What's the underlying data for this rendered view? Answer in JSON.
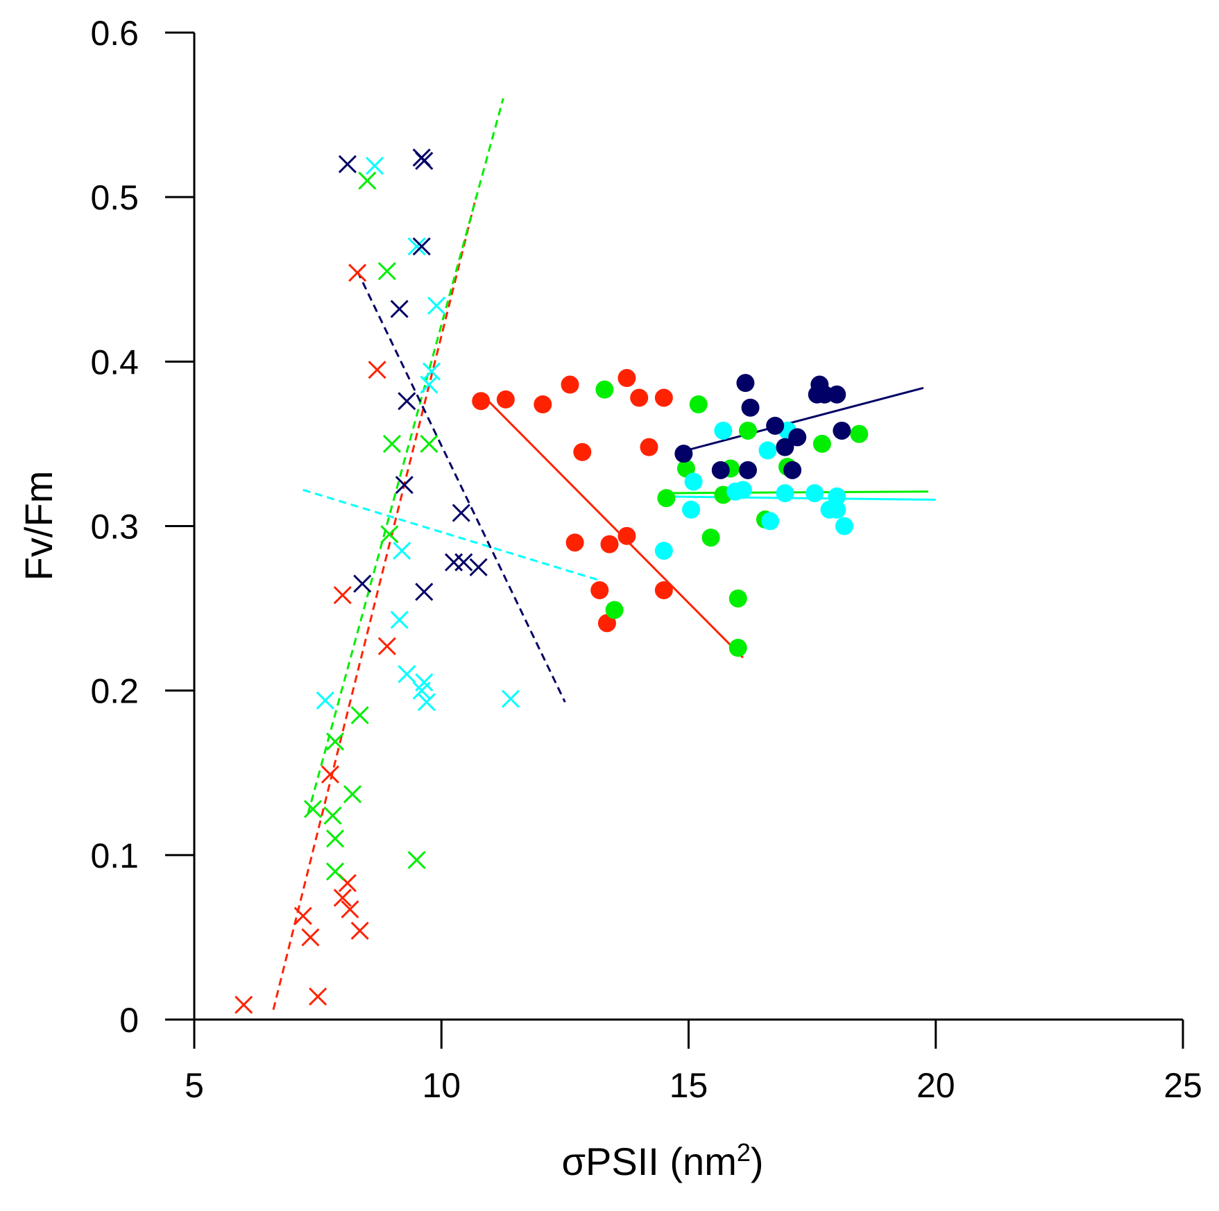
{
  "chart_data": {
    "type": "scatter",
    "title": "",
    "xlabel": "σPSII (nm",
    "xlabel_superscript": "2",
    "xlabel_suffix": ")",
    "ylabel": "Fv/Fm",
    "xlim": [
      5,
      25
    ],
    "ylim": [
      0,
      0.6
    ],
    "x_ticks": [
      5,
      10,
      15,
      20,
      25
    ],
    "x_tick_labels": [
      "5",
      "10",
      "15",
      "20",
      "25"
    ],
    "y_ticks": [
      0,
      0.1,
      0.2,
      0.3,
      0.4,
      0.5,
      0.6
    ],
    "y_tick_labels": [
      "0",
      "0.1",
      "0.2",
      "0.3",
      "0.4",
      "0.5",
      "0.6"
    ],
    "grid": false,
    "legend": null,
    "series": [
      {
        "name": "red-cross",
        "color": "#ff2200",
        "marker": "x",
        "points": [
          [
            6.0,
            0.009
          ],
          [
            7.2,
            0.063
          ],
          [
            7.35,
            0.05
          ],
          [
            7.5,
            0.014
          ],
          [
            7.75,
            0.149
          ],
          [
            8.0,
            0.074
          ],
          [
            8.1,
            0.083
          ],
          [
            8.15,
            0.067
          ],
          [
            8.35,
            0.054
          ],
          [
            8.3,
            0.454
          ],
          [
            8.0,
            0.258
          ],
          [
            8.7,
            0.395
          ],
          [
            8.9,
            0.227
          ]
        ]
      },
      {
        "name": "green-cross",
        "color": "#00ee00",
        "marker": "x",
        "points": [
          [
            8.5,
            0.51
          ],
          [
            8.9,
            0.455
          ],
          [
            9.0,
            0.35
          ],
          [
            8.95,
            0.295
          ],
          [
            9.75,
            0.35
          ],
          [
            8.35,
            0.185
          ],
          [
            7.85,
            0.169
          ],
          [
            7.8,
            0.124
          ],
          [
            7.4,
            0.128
          ],
          [
            8.2,
            0.137
          ],
          [
            7.85,
            0.11
          ],
          [
            7.85,
            0.09
          ],
          [
            9.5,
            0.097
          ]
        ]
      },
      {
        "name": "cyan-cross",
        "color": "#00ffff",
        "marker": "x",
        "points": [
          [
            8.65,
            0.519
          ],
          [
            9.5,
            0.47
          ],
          [
            9.9,
            0.434
          ],
          [
            9.8,
            0.394
          ],
          [
            9.75,
            0.386
          ],
          [
            9.2,
            0.285
          ],
          [
            9.15,
            0.243
          ],
          [
            9.3,
            0.21
          ],
          [
            9.65,
            0.205
          ],
          [
            9.6,
            0.2
          ],
          [
            9.7,
            0.193
          ],
          [
            7.65,
            0.194
          ],
          [
            11.4,
            0.195
          ]
        ]
      },
      {
        "name": "navy-cross",
        "color": "#000066",
        "marker": "x",
        "points": [
          [
            8.1,
            0.52
          ],
          [
            9.6,
            0.524
          ],
          [
            9.65,
            0.522
          ],
          [
            9.6,
            0.47
          ],
          [
            9.15,
            0.432
          ],
          [
            9.3,
            0.376
          ],
          [
            9.25,
            0.325
          ],
          [
            10.4,
            0.308
          ],
          [
            10.25,
            0.278
          ],
          [
            10.45,
            0.278
          ],
          [
            10.75,
            0.275
          ],
          [
            8.4,
            0.265
          ],
          [
            9.65,
            0.26
          ]
        ]
      },
      {
        "name": "red-dot",
        "color": "#ff2200",
        "marker": "o",
        "points": [
          [
            10.8,
            0.376
          ],
          [
            11.3,
            0.377
          ],
          [
            12.05,
            0.374
          ],
          [
            12.6,
            0.386
          ],
          [
            13.75,
            0.39
          ],
          [
            14.0,
            0.378
          ],
          [
            14.5,
            0.378
          ],
          [
            12.85,
            0.345
          ],
          [
            14.2,
            0.348
          ],
          [
            12.7,
            0.29
          ],
          [
            13.4,
            0.289
          ],
          [
            13.75,
            0.294
          ],
          [
            13.2,
            0.261
          ],
          [
            14.5,
            0.261
          ],
          [
            13.35,
            0.241
          ]
        ]
      },
      {
        "name": "green-dot",
        "color": "#00ee00",
        "marker": "o",
        "points": [
          [
            13.3,
            0.383
          ],
          [
            15.2,
            0.374
          ],
          [
            16.2,
            0.358
          ],
          [
            17.7,
            0.35
          ],
          [
            18.45,
            0.356
          ],
          [
            14.95,
            0.335
          ],
          [
            15.85,
            0.335
          ],
          [
            17.0,
            0.336
          ],
          [
            14.55,
            0.317
          ],
          [
            15.7,
            0.319
          ],
          [
            15.45,
            0.293
          ],
          [
            16.55,
            0.304
          ],
          [
            13.5,
            0.249
          ],
          [
            16.0,
            0.256
          ],
          [
            16.0,
            0.226
          ]
        ]
      },
      {
        "name": "cyan-dot",
        "color": "#00ffff",
        "marker": "o",
        "points": [
          [
            15.7,
            0.358
          ],
          [
            16.6,
            0.346
          ],
          [
            17.0,
            0.358
          ],
          [
            15.1,
            0.327
          ],
          [
            15.95,
            0.321
          ],
          [
            16.1,
            0.322
          ],
          [
            16.95,
            0.32
          ],
          [
            17.55,
            0.32
          ],
          [
            18.0,
            0.318
          ],
          [
            15.05,
            0.31
          ],
          [
            17.85,
            0.31
          ],
          [
            18.0,
            0.31
          ],
          [
            18.15,
            0.3
          ],
          [
            16.65,
            0.303
          ],
          [
            14.5,
            0.285
          ]
        ]
      },
      {
        "name": "navy-dot",
        "color": "#000066",
        "marker": "o",
        "points": [
          [
            16.15,
            0.387
          ],
          [
            17.6,
            0.38
          ],
          [
            17.65,
            0.386
          ],
          [
            17.75,
            0.38
          ],
          [
            18.0,
            0.38
          ],
          [
            16.25,
            0.372
          ],
          [
            16.75,
            0.361
          ],
          [
            17.2,
            0.354
          ],
          [
            18.1,
            0.358
          ],
          [
            14.9,
            0.344
          ],
          [
            16.95,
            0.348
          ],
          [
            15.65,
            0.334
          ],
          [
            16.2,
            0.334
          ],
          [
            17.1,
            0.334
          ]
        ]
      }
    ],
    "fit_lines": [
      {
        "name": "red-cross-fit",
        "color": "#ff2200",
        "style": "dashed",
        "from": [
          6.6,
          0.006
        ],
        "to": [
          10.7,
          0.5
        ]
      },
      {
        "name": "green-cross-fit",
        "color": "#00ee00",
        "style": "dashed",
        "from": [
          7.3,
          0.125
        ],
        "to": [
          11.25,
          0.56
        ]
      },
      {
        "name": "cyan-cross-fit",
        "color": "#00ffff",
        "style": "dashed",
        "from": [
          7.2,
          0.322
        ],
        "to": [
          13.2,
          0.267
        ]
      },
      {
        "name": "navy-cross-fit",
        "color": "#000066",
        "style": "dashed",
        "from": [
          8.3,
          0.455
        ],
        "to": [
          12.5,
          0.193
        ]
      },
      {
        "name": "red-dot-fit",
        "color": "#ff2200",
        "style": "solid",
        "from": [
          10.95,
          0.376
        ],
        "to": [
          16.1,
          0.22
        ]
      },
      {
        "name": "green-dot-fit",
        "color": "#00ee00",
        "style": "solid",
        "from": [
          14.4,
          0.32
        ],
        "to": [
          19.85,
          0.321
        ]
      },
      {
        "name": "cyan-dot-fit",
        "color": "#00ffff",
        "style": "solid",
        "from": [
          14.4,
          0.318
        ],
        "to": [
          20.0,
          0.316
        ]
      },
      {
        "name": "navy-dot-fit",
        "color": "#000066",
        "style": "solid",
        "from": [
          14.95,
          0.346
        ],
        "to": [
          19.75,
          0.384
        ]
      }
    ]
  }
}
